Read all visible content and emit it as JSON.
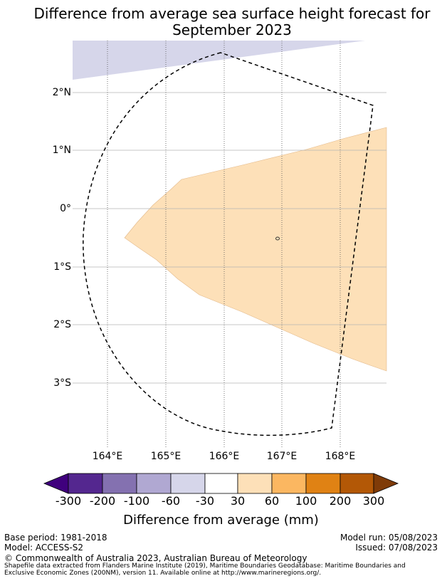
{
  "title": {
    "line1": "Difference from average sea surface height forecast for",
    "line2": "September 2023"
  },
  "map": {
    "lat_labels": [
      "2°N",
      "1°N",
      "0°",
      "1°S",
      "2°S",
      "3°S"
    ],
    "lon_labels": [
      "164°E",
      "165°E",
      "166°E",
      "167°E",
      "168°E"
    ],
    "colors": {
      "category_60_30": "#d6d6ea",
      "category_30_60": "#fde0b8",
      "eez_boundary": "#000000",
      "gridline": "#aaaaaa"
    }
  },
  "colorbar": {
    "ticks": [
      "-300",
      "-200",
      "-100",
      "-60",
      "-30",
      "30",
      "60",
      "100",
      "200",
      "300"
    ],
    "colors": [
      "#3f007d",
      "#54278f",
      "#8471b0",
      "#b0a8d2",
      "#d6d6ea",
      "#ffffff",
      "#fde0b8",
      "#fbb761",
      "#e08214",
      "#b35806",
      "#7f3b08"
    ],
    "label": "Difference from average (mm)"
  },
  "footer": {
    "base_period": "Base period: 1981-2018",
    "model": "Model: ACCESS-S2",
    "model_run": "Model run: 05/08/2023",
    "issued": "Issued: 07/08/2023",
    "copyright": "© Commonwealth of Australia 2023, Australian Bureau of Meteorology",
    "source_line1": "Shapefile data extracted from Flanders Marine Institute (2019), Maritime Boundaries Geodatabase: Maritime Boundaries and",
    "source_line2": "Exclusive Economic Zones (200NM), version 11. Available online at http://www.marineregions.org/."
  }
}
